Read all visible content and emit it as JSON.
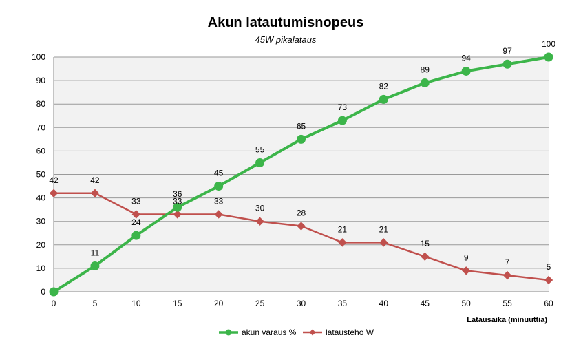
{
  "chart_data": {
    "type": "line",
    "title": "Akun latautumisnopeus",
    "subtitle": "45W pikalataus",
    "xlabel": "Latausaika  (minuuttia)",
    "ylabel": "",
    "x": [
      0,
      5,
      10,
      15,
      20,
      25,
      30,
      35,
      40,
      45,
      50,
      55,
      60
    ],
    "xlim": [
      0,
      60
    ],
    "ylim": [
      0,
      100
    ],
    "xticks": [
      0,
      5,
      10,
      15,
      20,
      25,
      30,
      35,
      40,
      45,
      50,
      55,
      60
    ],
    "yticks": [
      0,
      10,
      20,
      30,
      40,
      50,
      60,
      70,
      80,
      90,
      100
    ],
    "grid": "horizontal",
    "legend": "bottom",
    "series": [
      {
        "name": "akun varaus %",
        "color": "#3cb54a",
        "marker": "circle",
        "values": [
          0,
          11,
          24,
          36,
          45,
          55,
          65,
          73,
          82,
          89,
          94,
          97,
          100
        ],
        "labels": [
          "",
          "11",
          "24",
          "36",
          "45",
          "55",
          "65",
          "73",
          "82",
          "89",
          "94",
          "97",
          "100"
        ]
      },
      {
        "name": "latausteho W",
        "color": "#c0504d",
        "marker": "diamond",
        "values": [
          42,
          42,
          33,
          33,
          33,
          30,
          28,
          21,
          21,
          15,
          9,
          7,
          5
        ],
        "labels": [
          "42",
          "42",
          "33",
          "33",
          "33",
          "30",
          "28",
          "21",
          "21",
          "15",
          "9",
          "7",
          "5"
        ]
      }
    ]
  }
}
